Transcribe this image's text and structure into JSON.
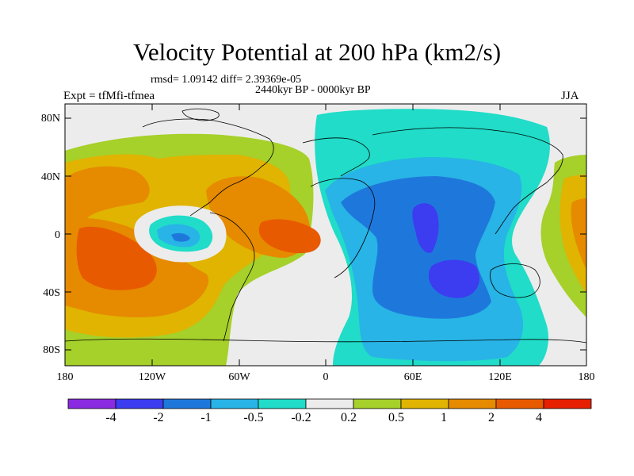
{
  "title": "Velocity Potential at 200 hPa (km2/s)",
  "stats_text": "rmsd= 1.09142 diff= 2.39369e-05",
  "period_text": "2440kyr BP - 0000kyr BP",
  "experiment_label": "Expt = tfMfi-tfmea",
  "season_label": "JJA",
  "map": {
    "projection": "cylindrical equidistant",
    "lon_range": [
      -180,
      180
    ],
    "lat_range": [
      -90,
      90
    ],
    "lat_ticks": [
      "80N",
      "40N",
      "0",
      "40S",
      "80S"
    ],
    "lon_ticks": [
      "180",
      "120W",
      "60W",
      "0",
      "60E",
      "120E",
      "180"
    ]
  },
  "colorbar": {
    "colors": [
      "#8a2be2",
      "#3c3cf0",
      "#1e78dc",
      "#28b4e6",
      "#20dcc8",
      "#ececec",
      "#a6d02a",
      "#e0b400",
      "#e68a00",
      "#e85a00",
      "#e62000"
    ],
    "labels": [
      "-4",
      "-2",
      "-1",
      "-0.5",
      "-0.2",
      "0.2",
      "0.5",
      "1",
      "2",
      "4"
    ]
  },
  "colors": {
    "land_outline": "#000000",
    "ocean_bg": "#ececec"
  }
}
